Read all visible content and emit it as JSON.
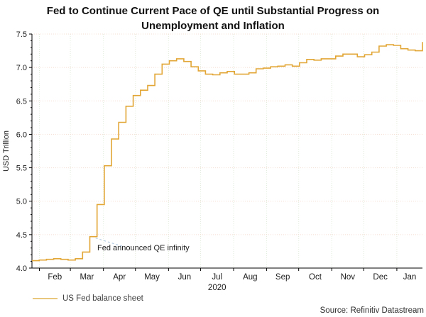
{
  "source_note": "Source: Refinitiv Datastream",
  "colors": {
    "line": "#e2a636",
    "legend_swatch": "#e9c87e",
    "h_grid": "#f3ded2",
    "v_grid": "#e2ecdb",
    "axis": "#000000",
    "tick_label": "#1a1a1a",
    "callout": "#aac4de"
  },
  "chart_data": {
    "type": "line",
    "step": "post",
    "title": "Fed to Continue Current Pace of QE until Substantial Progress on Unemployment and Inflation",
    "ylabel": "USD Trillion",
    "xlabel": "",
    "ylim": [
      4.0,
      7.5
    ],
    "y_major_ticks": [
      "4.0",
      "4.5",
      "5.0",
      "5.5",
      "6.0",
      "6.5",
      "7.0",
      "7.5"
    ],
    "y_minor_tick_step": 0.1,
    "grid": true,
    "x_tick_labels": [
      "Feb",
      "Mar",
      "Apr",
      "May",
      "Jun",
      "Jul",
      "Aug",
      "Sep",
      "Oct",
      "Nov",
      "Dec",
      "Jan"
    ],
    "x_year_label": "2020",
    "legend_position": "bottom-left",
    "series": [
      {
        "name": "US Fed balance sheet",
        "color": "#e2a636",
        "frequency": "weekly",
        "unit": "USD Trillion",
        "values": [
          4.11,
          4.12,
          4.13,
          4.14,
          4.13,
          4.12,
          4.14,
          4.24,
          4.47,
          4.95,
          5.53,
          5.93,
          6.18,
          6.42,
          6.58,
          6.66,
          6.73,
          6.9,
          7.05,
          7.1,
          7.13,
          7.09,
          7.01,
          6.95,
          6.9,
          6.89,
          6.92,
          6.94,
          6.9,
          6.9,
          6.92,
          6.98,
          6.99,
          7.01,
          7.02,
          7.04,
          7.02,
          7.07,
          7.12,
          7.11,
          7.13,
          7.13,
          7.17,
          7.2,
          7.2,
          7.16,
          7.19,
          7.23,
          7.32,
          7.34,
          7.33,
          7.28,
          7.26,
          7.25,
          7.38
        ]
      }
    ],
    "annotations": [
      {
        "text": "Fed announced QE infinity",
        "target_value": 4.47
      }
    ]
  }
}
